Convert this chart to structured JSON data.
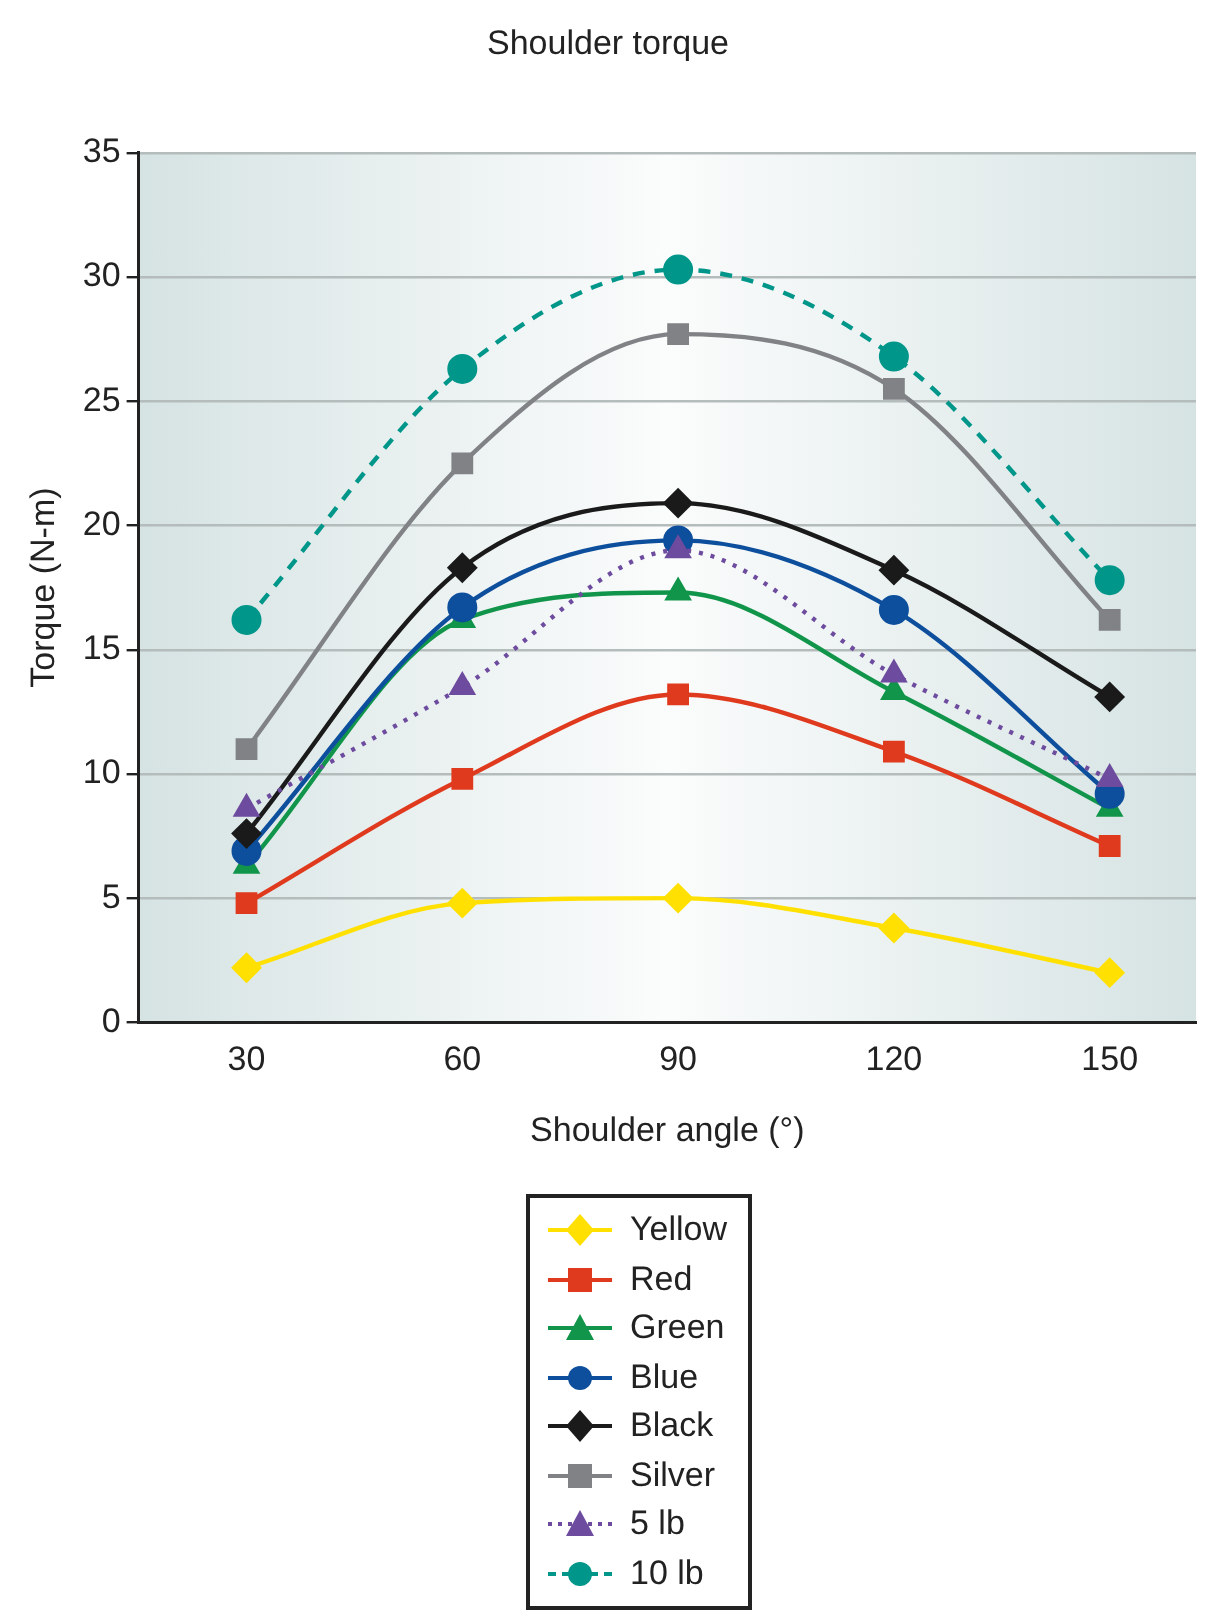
{
  "chart_data": {
    "type": "line",
    "title": "Shoulder torque",
    "xlabel": "Shoulder angle (°)",
    "ylabel": "Torque (N-m)",
    "x": [
      30,
      60,
      90,
      120,
      150
    ],
    "xlim": [
      15,
      162
    ],
    "xticks": [
      30,
      60,
      90,
      120,
      150
    ],
    "ylim": [
      0,
      35
    ],
    "yticks": [
      0,
      5,
      10,
      15,
      20,
      25,
      30,
      35
    ],
    "grid": "y",
    "legend": "bottom",
    "line_style": "solid",
    "series": [
      {
        "name": "Yellow",
        "color": "#ffe000",
        "marker": "diamond",
        "values": [
          2.2,
          4.8,
          5.0,
          3.8,
          2.0
        ]
      },
      {
        "name": "Red",
        "color": "#e03a1e",
        "marker": "square",
        "values": [
          4.8,
          9.8,
          13.2,
          10.9,
          7.1
        ]
      },
      {
        "name": "Green",
        "color": "#10954a",
        "marker": "triangle",
        "values": [
          6.3,
          16.2,
          17.3,
          13.3,
          8.6
        ]
      },
      {
        "name": "Blue",
        "color": "#0d4f9c",
        "marker": "circle",
        "values": [
          6.9,
          16.7,
          19.4,
          16.6,
          9.2
        ]
      },
      {
        "name": "Black",
        "color": "#1a1a1a",
        "marker": "diamond",
        "values": [
          7.6,
          18.3,
          20.9,
          18.2,
          13.1
        ]
      },
      {
        "name": "Silver",
        "color": "#808285",
        "marker": "square",
        "values": [
          11.0,
          22.5,
          27.7,
          25.5,
          16.2
        ]
      },
      {
        "name": "5 lb",
        "color": "#6d4b9e",
        "marker": "triangle",
        "line_style": "dotted",
        "values": [
          8.6,
          13.5,
          19.0,
          14.0,
          9.8
        ]
      },
      {
        "name": "10 lb",
        "color": "#009689",
        "marker": "circle",
        "line_style": "dashed",
        "values": [
          16.2,
          26.3,
          30.3,
          26.8,
          17.8
        ]
      }
    ]
  }
}
